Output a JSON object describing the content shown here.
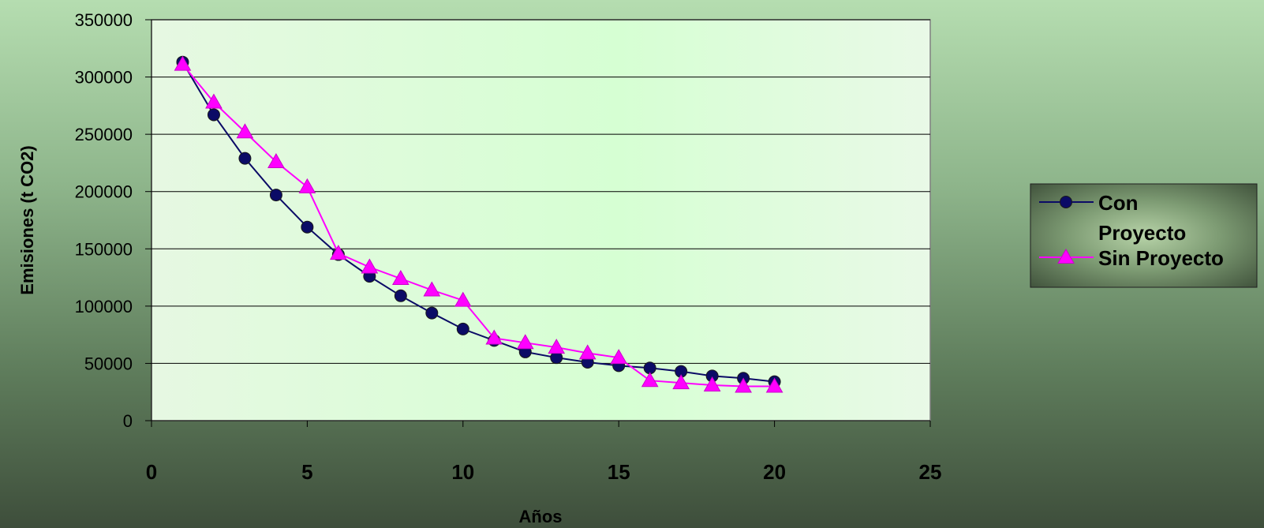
{
  "chart_data": {
    "type": "line",
    "xlabel": "Años",
    "ylabel": "Emisiones (t CO2)",
    "xlim": [
      0,
      25
    ],
    "ylim": [
      0,
      350000
    ],
    "xticks": [
      "0",
      "5",
      "10",
      "15",
      "20",
      "25"
    ],
    "yticks": [
      "0",
      "50000",
      "100000",
      "150000",
      "200000",
      "250000",
      "300000",
      "350000"
    ],
    "grid": "horizontal",
    "legend_position": "right",
    "series": [
      {
        "name": "Con Proyecto",
        "legend_lines": [
          "Con",
          "Proyecto"
        ],
        "color": "#0b0b66",
        "marker": "circle",
        "x": [
          1,
          2,
          3,
          4,
          5,
          6,
          7,
          8,
          9,
          10,
          11,
          12,
          13,
          14,
          15,
          16,
          17,
          18,
          19,
          20
        ],
        "y": [
          313000,
          267000,
          229000,
          197000,
          169000,
          145000,
          126000,
          109000,
          94000,
          80000,
          70000,
          60000,
          55000,
          51000,
          48000,
          46000,
          43000,
          39000,
          37000,
          34000
        ]
      },
      {
        "name": "Sin Proyecto",
        "legend_lines": [
          "Sin Proyecto"
        ],
        "color": "#ff00ff",
        "marker": "triangle",
        "x": [
          1,
          2,
          3,
          4,
          5,
          6,
          7,
          8,
          9,
          10,
          11,
          12,
          13,
          14,
          15,
          16,
          17,
          18,
          19,
          20
        ],
        "y": [
          311000,
          278000,
          252000,
          226000,
          204000,
          146000,
          134000,
          124000,
          114000,
          105000,
          72000,
          68000,
          64000,
          59000,
          55000,
          35000,
          33000,
          31000,
          30000,
          30000
        ]
      }
    ]
  }
}
